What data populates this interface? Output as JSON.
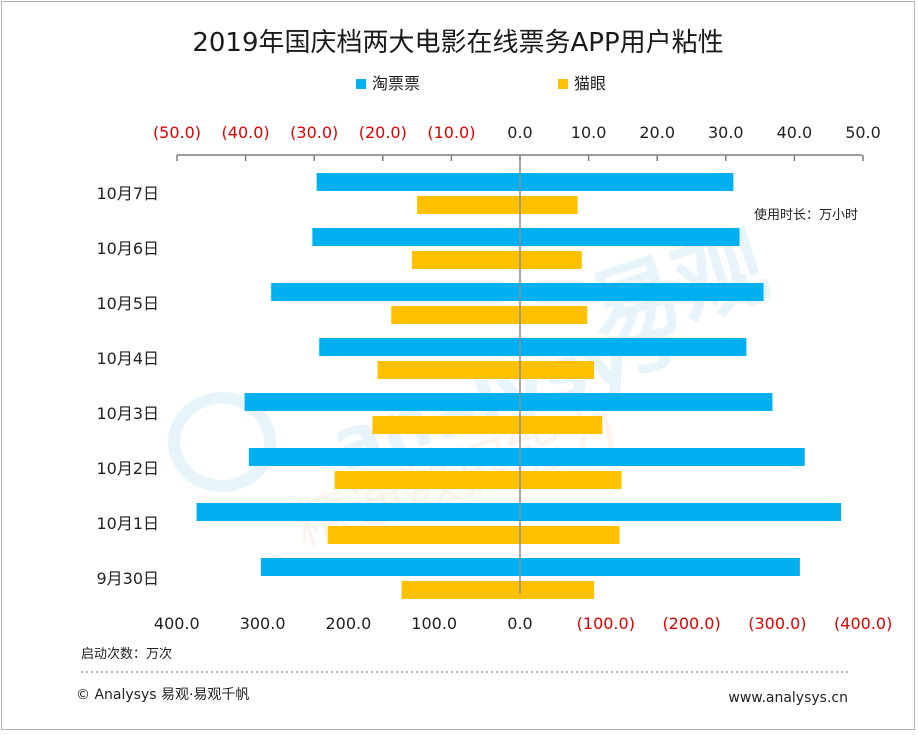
{
  "chart_data": {
    "type": "bar",
    "title": "2019年国庆档两大电影在线票务APP用户粘性",
    "categories": [
      "10月7日",
      "10月6日",
      "10月5日",
      "10月4日",
      "10月3日",
      "10月2日",
      "10月1日",
      "9月30日"
    ],
    "series": [
      {
        "name": "淘票票",
        "color": "#00b0f0",
        "usage_hours": [
          31.1,
          32.0,
          35.5,
          33.0,
          36.8,
          41.5,
          46.8,
          40.8
        ],
        "launch_counts": [
          237,
          242,
          290,
          234,
          321,
          316,
          377,
          302
        ]
      },
      {
        "name": "猫眼",
        "color": "#ffc000",
        "usage_hours": [
          8.4,
          9.0,
          9.8,
          10.8,
          12.0,
          14.8,
          14.5,
          10.8
        ],
        "launch_counts": [
          120,
          126,
          150,
          166,
          172,
          216,
          224,
          138
        ]
      }
    ],
    "top_axis": {
      "unit_label": "使用时长：万小时",
      "range": [
        -50,
        50
      ],
      "ticks": [
        "(50.0)",
        "(40.0)",
        "(30.0)",
        "(20.0)",
        "(10.0)",
        "0.0",
        "10.0",
        "20.0",
        "30.0",
        "40.0",
        "50.0"
      ]
    },
    "bottom_axis": {
      "unit_label": "启动次数：万次",
      "range": [
        400,
        -400
      ],
      "ticks": [
        "400.0",
        "300.0",
        "200.0",
        "100.0",
        "0.0",
        "(100.0)",
        "(200.0)",
        "(300.0)",
        "(400.0)"
      ]
    },
    "legend_position": "top",
    "negative_tick_color": "#e00000"
  },
  "footer": {
    "copyright": "© Analysys 易观·易观千帆",
    "website": "www.analysys.cn"
  },
  "watermark": {
    "brand": "易观",
    "latin": "analysys",
    "slogan": "精通数据能力"
  }
}
